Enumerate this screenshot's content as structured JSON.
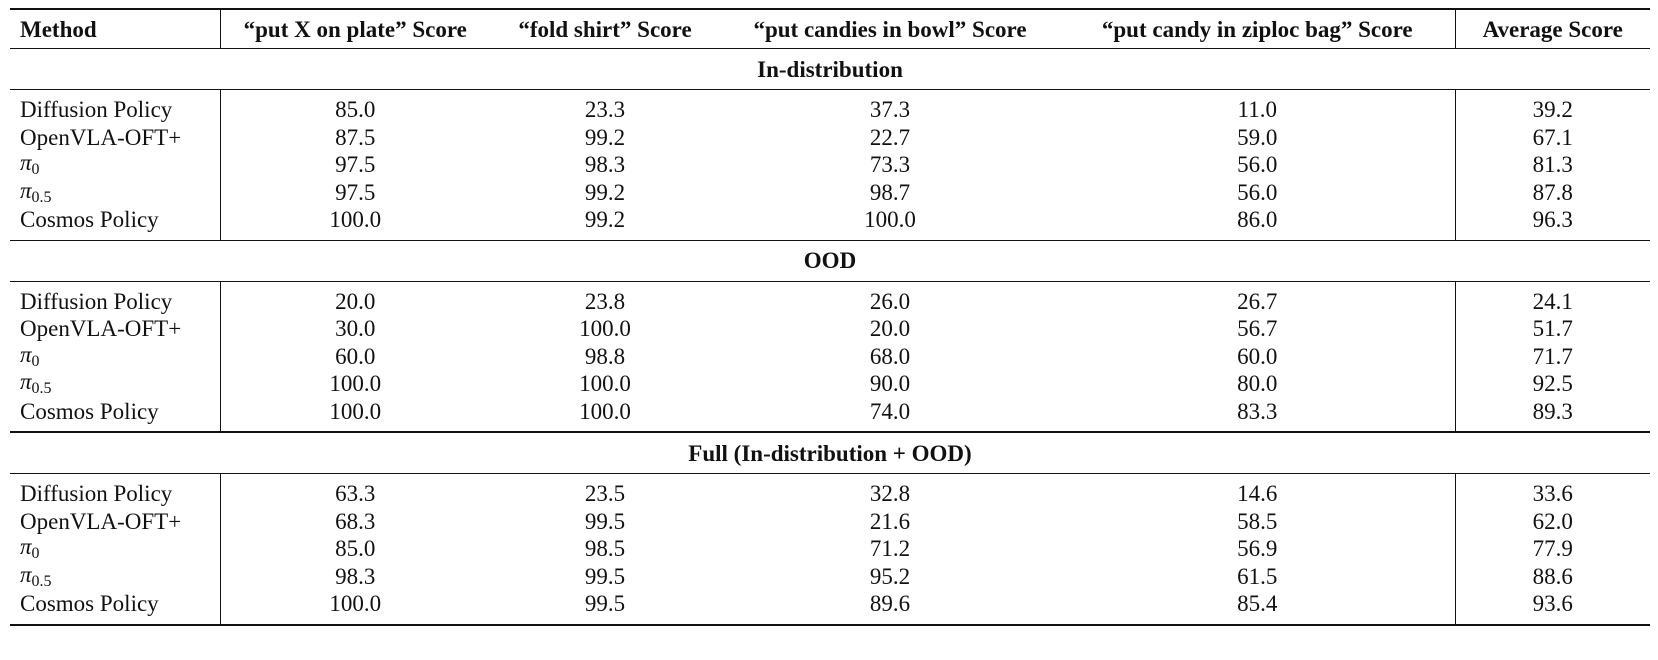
{
  "table": {
    "headers": {
      "method": "Method",
      "task1": "“put X on plate” Score",
      "task2": "“fold shirt” Score",
      "task3": "“put candies in bowl” Score",
      "task4": "“put candy in ziploc bag” Score",
      "average": "Average Score"
    },
    "sections": [
      {
        "title": "In-distribution",
        "rows": [
          {
            "method": "Diffusion Policy",
            "values": [
              "85.0",
              "23.3",
              "37.3",
              "11.0",
              "39.2"
            ]
          },
          {
            "method": "OpenVLA-OFT+",
            "values": [
              "87.5",
              "99.2",
              "22.7",
              "59.0",
              "67.1"
            ]
          },
          {
            "method_base": "π",
            "method_sub": "0",
            "values": [
              "97.5",
              "98.3",
              "73.3",
              "56.0",
              "81.3"
            ]
          },
          {
            "method_base": "π",
            "method_sub": "0.5",
            "values": [
              "97.5",
              "99.2",
              "98.7",
              "56.0",
              "87.8"
            ]
          },
          {
            "method": "Cosmos Policy",
            "values": [
              "100.0",
              "99.2",
              "100.0",
              "86.0",
              "96.3"
            ]
          }
        ]
      },
      {
        "title": "OOD",
        "rows": [
          {
            "method": "Diffusion Policy",
            "values": [
              "20.0",
              "23.8",
              "26.0",
              "26.7",
              "24.1"
            ]
          },
          {
            "method": "OpenVLA-OFT+",
            "values": [
              "30.0",
              "100.0",
              "20.0",
              "56.7",
              "51.7"
            ]
          },
          {
            "method_base": "π",
            "method_sub": "0",
            "values": [
              "60.0",
              "98.8",
              "68.0",
              "60.0",
              "71.7"
            ]
          },
          {
            "method_base": "π",
            "method_sub": "0.5",
            "values": [
              "100.0",
              "100.0",
              "90.0",
              "80.0",
              "92.5"
            ]
          },
          {
            "method": "Cosmos Policy",
            "values": [
              "100.0",
              "100.0",
              "74.0",
              "83.3",
              "89.3"
            ]
          }
        ]
      },
      {
        "title": "Full (In-distribution + OOD)",
        "rows": [
          {
            "method": "Diffusion Policy",
            "values": [
              "63.3",
              "23.5",
              "32.8",
              "14.6",
              "33.6"
            ]
          },
          {
            "method": "OpenVLA-OFT+",
            "values": [
              "68.3",
              "99.5",
              "21.6",
              "58.5",
              "62.0"
            ]
          },
          {
            "method_base": "π",
            "method_sub": "0",
            "values": [
              "85.0",
              "98.5",
              "71.2",
              "56.9",
              "77.9"
            ]
          },
          {
            "method_base": "π",
            "method_sub": "0.5",
            "values": [
              "98.3",
              "99.5",
              "95.2",
              "61.5",
              "88.6"
            ]
          },
          {
            "method": "Cosmos Policy",
            "values": [
              "100.0",
              "99.5",
              "89.6",
              "85.4",
              "93.6"
            ]
          }
        ]
      }
    ]
  }
}
